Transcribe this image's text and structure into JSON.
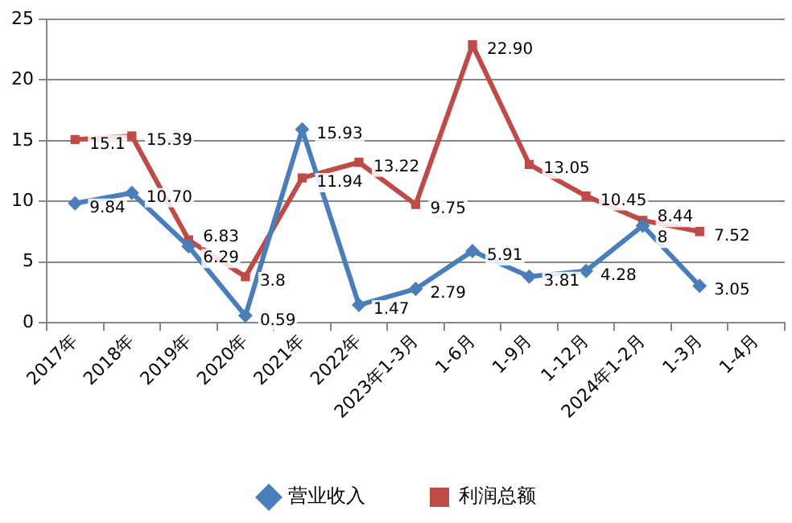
{
  "chart_data": {
    "type": "line",
    "categories": [
      "2017年",
      "2018年",
      "2019年",
      "2020年",
      "2021年",
      "2022年",
      "2023年1-3月",
      "1-6月",
      "1-9月",
      "1-12月",
      "2024年1-2月",
      "1-3月",
      "1-4月"
    ],
    "series": [
      {
        "name": "营业收入",
        "color": "#4a7ebb",
        "marker": "diamond",
        "values": [
          9.84,
          10.7,
          6.29,
          0.59,
          15.93,
          1.47,
          2.79,
          5.91,
          3.81,
          4.28,
          8,
          3.05,
          null
        ],
        "value_labels": [
          "9.84",
          "10.70",
          "6.29",
          "0.59",
          "15.93",
          "1.47",
          "2.79",
          "5.91",
          "3.81",
          "4.28",
          "8",
          "3.05",
          null
        ]
      },
      {
        "name": "利润总额",
        "color": "#be4b48",
        "marker": "square",
        "values": [
          15.1,
          15.39,
          6.83,
          3.8,
          11.94,
          13.22,
          9.75,
          22.9,
          13.05,
          10.45,
          8.44,
          7.52,
          null
        ],
        "value_labels": [
          "15.1",
          "15.39",
          "6.83",
          "3.8",
          "11.94",
          "13.22",
          "9.75",
          "22.90",
          "13.05",
          "10.45",
          "8.44",
          "7.52",
          null
        ]
      }
    ],
    "ylim": [
      0,
      25
    ],
    "yticks": [
      0,
      5,
      10,
      15,
      20,
      25
    ],
    "grid": "y",
    "legend": "bottom",
    "line_style": "solid"
  }
}
